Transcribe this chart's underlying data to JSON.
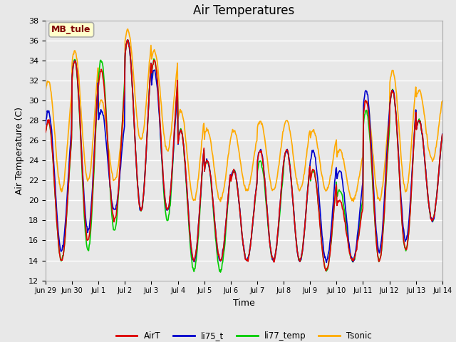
{
  "title": "Air Temperatures",
  "xlabel": "Time",
  "ylabel": "Air Temperature (C)",
  "ylim": [
    12,
    38
  ],
  "yticks": [
    12,
    14,
    16,
    18,
    20,
    22,
    24,
    26,
    28,
    30,
    32,
    34,
    36,
    38
  ],
  "background_color": "#e8e8e8",
  "grid_color": "#ffffff",
  "annotation_text": "MB_tule",
  "annotation_bg": "#ffffcc",
  "annotation_border": "#aaaaaa",
  "annotation_text_color": "#800000",
  "legend_labels": [
    "AirT",
    "li75_t",
    "li77_temp",
    "Tsonic"
  ],
  "line_colors": [
    "#dd0000",
    "#0000cc",
    "#00cc00",
    "#ffaa00"
  ],
  "title_fontsize": 12,
  "label_fontsize": 9,
  "tick_fontsize": 8,
  "x_tick_labels": [
    "Jun 29",
    "Jun 30",
    "Jul 1",
    "Jul 2",
    "Jul 3",
    "Jul 4",
    "Jul 5",
    "Jul 6",
    "Jul 7",
    "Jul 8",
    "Jul 9",
    "Jul 10",
    "Jul 11",
    "Jul 12",
    "Jul 13",
    "Jul 14"
  ],
  "n_days": 15,
  "pts_per_day": 48
}
